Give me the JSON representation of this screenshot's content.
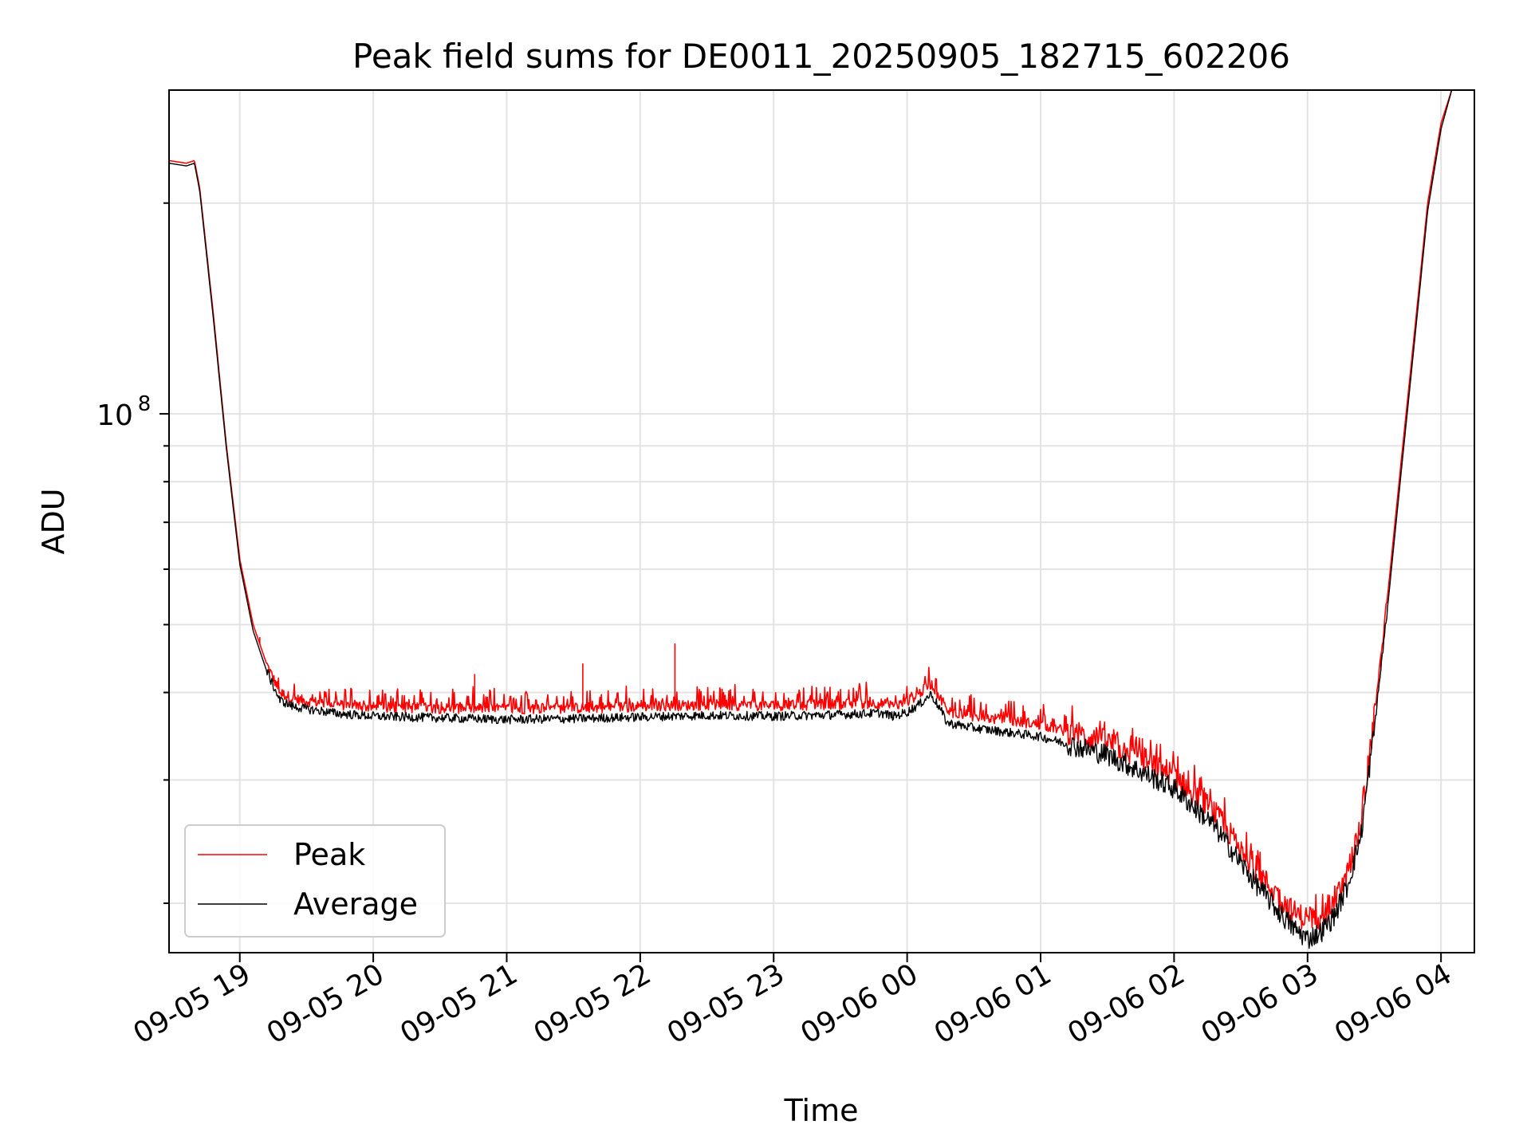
{
  "chart_data": {
    "type": "line",
    "title": "Peak field sums for DE0011_20250905_182715_602206",
    "xlabel": "Time",
    "ylabel": "ADU",
    "yscale": "log",
    "xlim_hours": [
      -0.53,
      9.25
    ],
    "ylim": [
      17000000,
      290000000
    ],
    "x_ticks": [
      {
        "hour": 0,
        "label": "09-05 19"
      },
      {
        "hour": 1,
        "label": "09-05 20"
      },
      {
        "hour": 2,
        "label": "09-05 21"
      },
      {
        "hour": 3,
        "label": "09-05 22"
      },
      {
        "hour": 4,
        "label": "09-05 23"
      },
      {
        "hour": 5,
        "label": "09-06 00"
      },
      {
        "hour": 6,
        "label": "09-06 01"
      },
      {
        "hour": 7,
        "label": "09-06 02"
      },
      {
        "hour": 8,
        "label": "09-06 03"
      },
      {
        "hour": 9,
        "label": "09-06 04"
      }
    ],
    "y_major_tick": {
      "value": 100000000,
      "base": "10",
      "exponent": "8"
    },
    "grid": true,
    "legend_position": "lower-left",
    "series": [
      {
        "name": "Peak",
        "color": "#ff0000",
        "x_hours": [
          -0.53,
          -0.4,
          -0.34,
          -0.3,
          -0.2,
          -0.1,
          0,
          0.1,
          0.2,
          0.3,
          0.4,
          0.5,
          0.75,
          1,
          1.5,
          2,
          2.5,
          3,
          3.2,
          3.5,
          4,
          4.5,
          4.8,
          4.9,
          5,
          5.1,
          5.18,
          5.25,
          5.3,
          5.5,
          6,
          6.5,
          7,
          7.3,
          7.6,
          7.8,
          7.9,
          8,
          8.1,
          8.2,
          8.3,
          8.4,
          8.5,
          8.6,
          8.7,
          8.8,
          8.9,
          9.0,
          9.08
        ],
        "values": [
          230000000,
          228000000,
          230000000,
          210000000,
          140000000,
          90000000,
          62000000,
          50000000,
          44000000,
          40000000,
          39200000,
          38900000,
          38400000,
          38100000,
          38000000,
          37900000,
          38000000,
          38200000,
          38300000,
          38400000,
          38300000,
          38500000,
          38600000,
          38200000,
          38800000,
          40000000,
          41200000,
          39200000,
          37600000,
          37000000,
          36000000,
          34000000,
          30500000,
          27000000,
          22500000,
          20200000,
          19400000,
          19000000,
          19200000,
          20000000,
          22000000,
          26000000,
          37000000,
          55000000,
          85000000,
          130000000,
          200000000,
          260000000,
          290000000
        ],
        "spikes": [
          {
            "hour": 2.57,
            "value": 44000000
          },
          {
            "hour": 3.26,
            "value": 47000000
          },
          {
            "hour": 0.15,
            "value": 48000000
          },
          {
            "hour": 1.76,
            "value": 42500000
          },
          {
            "hour": 3.6,
            "value": 40500000
          },
          {
            "hour": 8.55,
            "value": 43000000
          }
        ]
      },
      {
        "name": "Average",
        "color": "#000000",
        "x_hours": [
          -0.53,
          -0.4,
          -0.34,
          -0.3,
          -0.2,
          -0.1,
          0,
          0.1,
          0.2,
          0.3,
          0.4,
          0.5,
          0.75,
          1,
          1.5,
          2,
          2.5,
          3,
          3.2,
          3.5,
          4,
          4.5,
          4.8,
          4.9,
          5,
          5.1,
          5.18,
          5.25,
          5.3,
          5.5,
          6,
          6.5,
          7,
          7.3,
          7.6,
          7.8,
          7.9,
          8,
          8.1,
          8.2,
          8.3,
          8.4,
          8.5,
          8.6,
          8.7,
          8.8,
          8.9,
          9.0,
          9.08
        ],
        "values": [
          228000000,
          226000000,
          228000000,
          208000000,
          138000000,
          89000000,
          61000000,
          49000000,
          43000000,
          39000000,
          38200000,
          37900000,
          37300000,
          37000000,
          36800000,
          36600000,
          36700000,
          36900000,
          37000000,
          37100000,
          37000000,
          37200000,
          37400000,
          37000000,
          37500000,
          38600000,
          39800000,
          37800000,
          36200000,
          35600000,
          34600000,
          32600000,
          29200000,
          25800000,
          21500000,
          19300000,
          18400000,
          17800000,
          18200000,
          19200000,
          21200000,
          25000000,
          35500000,
          53000000,
          82000000,
          126000000,
          195000000,
          255000000,
          290000000
        ]
      }
    ]
  }
}
